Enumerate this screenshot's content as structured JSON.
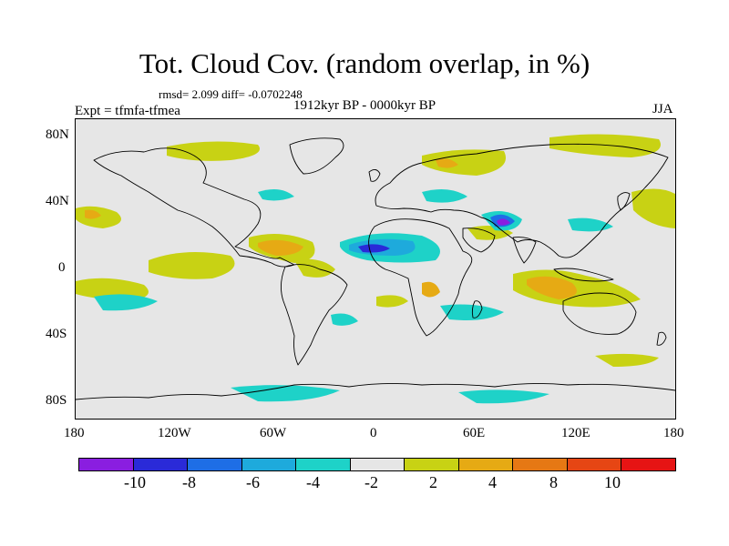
{
  "title": "Tot. Cloud Cov. (random overlap, in %)",
  "stats": "rmsd= 2.099 diff= -0.0702248",
  "experiment": "Expt = tfmfa-tfmea",
  "period": "1912kyr BP - 0000kyr BP",
  "season": "JJA",
  "lat_labels": [
    "80N",
    "40N",
    "0",
    "40S",
    "80S"
  ],
  "lon_labels": [
    "180",
    "120W",
    "60W",
    "0",
    "60E",
    "120E",
    "180"
  ],
  "colorbar": {
    "colors": [
      "#8a1ee0",
      "#2a2ad8",
      "#1e6ee6",
      "#1eaadc",
      "#1ed2c8",
      "#e6e6e6",
      "#c8d214",
      "#e6aa14",
      "#e67814",
      "#e64614",
      "#e61414"
    ],
    "labels": [
      "-10",
      "-8",
      "-6",
      "-4",
      "-2",
      "2",
      "4",
      "8",
      "10"
    ]
  },
  "map_data": {
    "projection": "cylindrical equidistant",
    "lon_range": [
      -180,
      180
    ],
    "lat_range": [
      -90,
      90
    ],
    "background_color": "#e6e6e6",
    "coastline_color": "#000000"
  }
}
